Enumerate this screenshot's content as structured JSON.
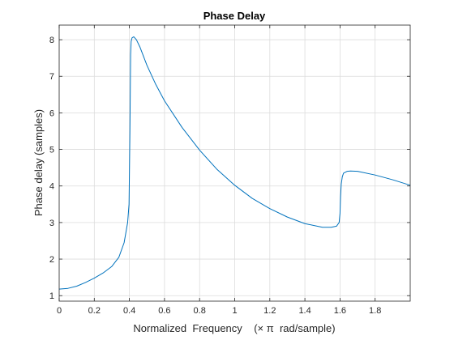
{
  "chart_data": {
    "type": "line",
    "title": "Phase Delay",
    "xlabel": "Normalized  Frequency    (× π  rad/sample)",
    "ylabel": "Phase delay (samples)",
    "xlim": [
      0,
      2
    ],
    "ylim": [
      0.85,
      8.4
    ],
    "xticks": [
      0,
      0.2,
      0.4,
      0.6,
      0.8,
      1,
      1.2,
      1.4,
      1.6,
      1.8
    ],
    "xtick_labels": [
      "0",
      "0.2",
      "0.4",
      "0.6",
      "0.8",
      "1",
      "1.2",
      "1.4",
      "1.6",
      "1.8"
    ],
    "yticks": [
      1,
      2,
      3,
      4,
      5,
      6,
      7,
      8
    ],
    "ytick_labels": [
      "1",
      "2",
      "3",
      "4",
      "5",
      "6",
      "7",
      "8"
    ],
    "grid": true,
    "line_color": "#0072BD",
    "series": [
      {
        "x": [
          0,
          0.05,
          0.1,
          0.15,
          0.2,
          0.25,
          0.3,
          0.34,
          0.37,
          0.39,
          0.398,
          0.403,
          0.407,
          0.41,
          0.415,
          0.425,
          0.44,
          0.46,
          0.5,
          0.55,
          0.6,
          0.7,
          0.8,
          0.9,
          1.0,
          1.1,
          1.2,
          1.3,
          1.4,
          1.5,
          1.55,
          1.58,
          1.595,
          1.6,
          1.603,
          1.607,
          1.613,
          1.62,
          1.64,
          1.66,
          1.7,
          1.8,
          1.9,
          2.0
        ],
        "y": [
          1.18,
          1.2,
          1.26,
          1.36,
          1.48,
          1.62,
          1.8,
          2.05,
          2.45,
          3.0,
          3.5,
          5.5,
          7.6,
          7.95,
          8.05,
          8.08,
          8.0,
          7.8,
          7.3,
          6.78,
          6.33,
          5.6,
          4.98,
          4.45,
          4.02,
          3.66,
          3.38,
          3.15,
          2.97,
          2.87,
          2.87,
          2.9,
          3.0,
          3.25,
          3.7,
          4.05,
          4.25,
          4.35,
          4.4,
          4.41,
          4.4,
          4.3,
          4.17,
          4.02
        ]
      }
    ]
  }
}
